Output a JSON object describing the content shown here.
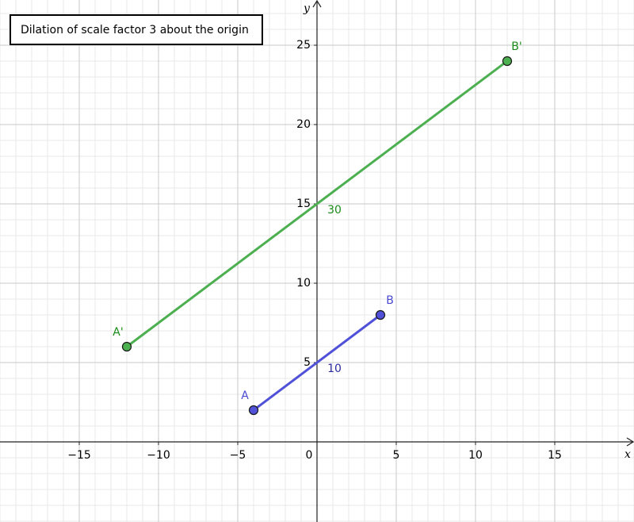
{
  "chart_data": {
    "type": "line",
    "title": "Dilation of scale factor 3 about the origin",
    "x_label": "x",
    "y_label": "y",
    "xlim": [
      -20,
      20
    ],
    "ylim": [
      -5.05,
      27.85
    ],
    "xticks": [
      {
        "value": -15,
        "label": "−15"
      },
      {
        "value": -10,
        "label": "−10"
      },
      {
        "value": -5,
        "label": "−5"
      },
      0,
      5,
      10,
      15
    ],
    "yticks": [
      5,
      10,
      15,
      20,
      25
    ],
    "grid": true,
    "minor_grid_step": 1,
    "series": [
      {
        "color": "#5050d8",
        "label_color": "#4a4ad0",
        "length_color": "#2a2aa0",
        "point_labels": [
          "A",
          "B"
        ],
        "x": [
          -4,
          4
        ],
        "values": [
          2,
          8
        ],
        "length": 10
      },
      {
        "color": "#4caf50",
        "label_color": "#1a8c1a",
        "length_color": "#1a8c1a",
        "point_labels": [
          "A'",
          "B'"
        ],
        "x": [
          -12,
          12
        ],
        "values": [
          6,
          24
        ],
        "length": 30
      }
    ]
  }
}
